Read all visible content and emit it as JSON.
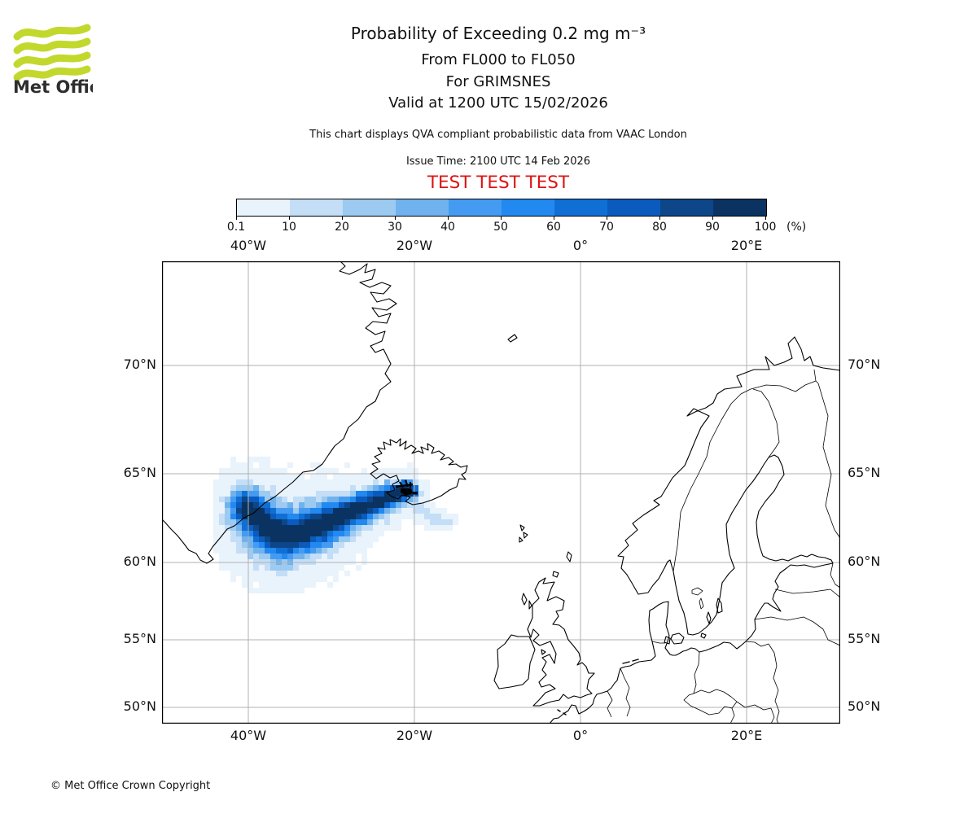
{
  "header": {
    "logo_text": "Met Office",
    "title": "Probability of Exceeding 0.2 mg m⁻³",
    "subtitle_flight_levels": "From FL000 to FL050",
    "subtitle_volcano": "For GRIMSNES",
    "subtitle_valid": "Valid at 1200 UTC 15/02/2026",
    "description": "This chart displays QVA compliant probabilistic data from VAAC London",
    "issue_time": "Issue Time: 2100 UTC 14 Feb 2026",
    "test_banner": "TEST TEST TEST"
  },
  "colors": {
    "logo_green": "#c3d82d",
    "test_red": "#db1414",
    "grid_gray": "#b0b0b0",
    "coast_black": "#000000"
  },
  "colorbar": {
    "tick_labels": [
      "0.1",
      "10",
      "20",
      "30",
      "40",
      "50",
      "60",
      "70",
      "80",
      "90",
      "100"
    ],
    "unit_label": "(%)",
    "colors": [
      "#e9f3fc",
      "#c3def6",
      "#9ccaf1",
      "#70b2ed",
      "#459bf1",
      "#2189f0",
      "#0f6fd4",
      "#0a5bbd",
      "#0d4689",
      "#0a3361"
    ]
  },
  "map": {
    "lon_tick_labels": [
      "40°W",
      "20°W",
      "0°",
      "20°E"
    ],
    "lat_tick_labels": [
      "70°N",
      "65°N",
      "60°N",
      "55°N",
      "50°N"
    ]
  },
  "plume": {
    "description": "Volcanic ash exceedance probability plume extending southwest from Grimsnes, Iceland toward southeast Greenland",
    "cell": 7,
    "thresholds": [
      0.1,
      10,
      20,
      30,
      40,
      50,
      60,
      70,
      80,
      90
    ],
    "branches": [
      {
        "amp": 106,
        "spine": [
          [
            106,
            304
          ],
          [
            119,
            317
          ],
          [
            133,
            329
          ],
          [
            149,
            337
          ],
          [
            169,
            334
          ],
          [
            196,
            324
          ],
          [
            226,
            311
          ],
          [
            256,
            299
          ],
          [
            281,
            289
          ],
          [
            298,
            281
          ],
          [
            307,
            283
          ]
        ],
        "widths": [
          24,
          28,
          31,
          31,
          29,
          26,
          22,
          18,
          15,
          12,
          9
        ]
      },
      {
        "amp": 15,
        "spine": [
          [
            300,
            284
          ],
          [
            312,
            301
          ],
          [
            330,
            315
          ],
          [
            352,
            319
          ]
        ],
        "widths": [
          9,
          9,
          8,
          6
        ]
      }
    ]
  },
  "footer": {
    "copyright": "© Met Office Crown Copyright"
  }
}
